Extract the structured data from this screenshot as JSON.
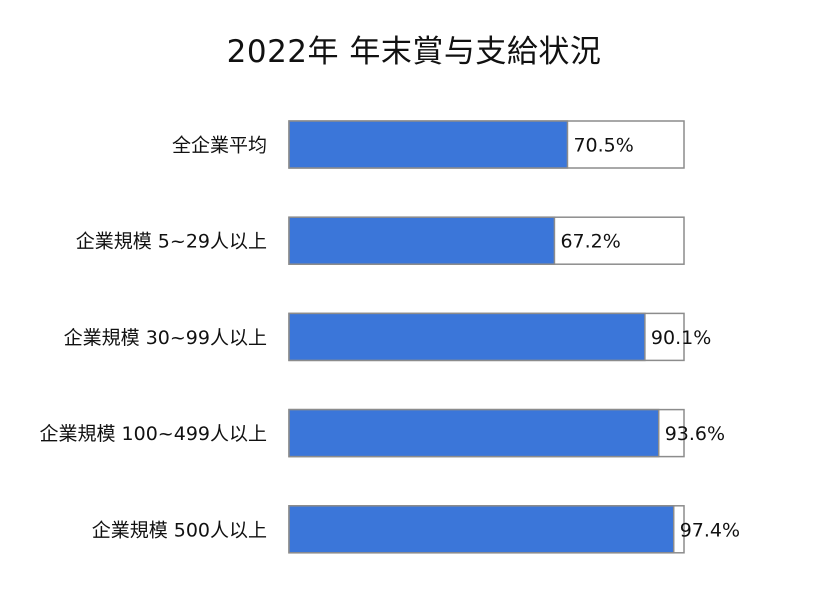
{
  "chart_data": {
    "type": "bar",
    "orientation": "horizontal",
    "stacked_to_100": true,
    "title": "2022年 年末賞与支給状況",
    "xlabel": "",
    "ylabel": "",
    "xlim": [
      0,
      100
    ],
    "grid": false,
    "categories": [
      "全企業平均",
      "企業規模 5~29人以上",
      "企業規模 30~99人以上",
      "企業規模 100~499人以上",
      "企業規模 500人以上"
    ],
    "values": [
      70.5,
      67.2,
      90.1,
      93.6,
      97.4
    ],
    "data_labels": [
      "70.5%",
      "67.2%",
      "90.1%",
      "93.6%",
      "97.4%"
    ],
    "colors": {
      "bar_fill": "#3b76d9",
      "remainder_fill": "#ffffff",
      "bar_border": "#8c8c8c",
      "text": "#111111"
    }
  }
}
